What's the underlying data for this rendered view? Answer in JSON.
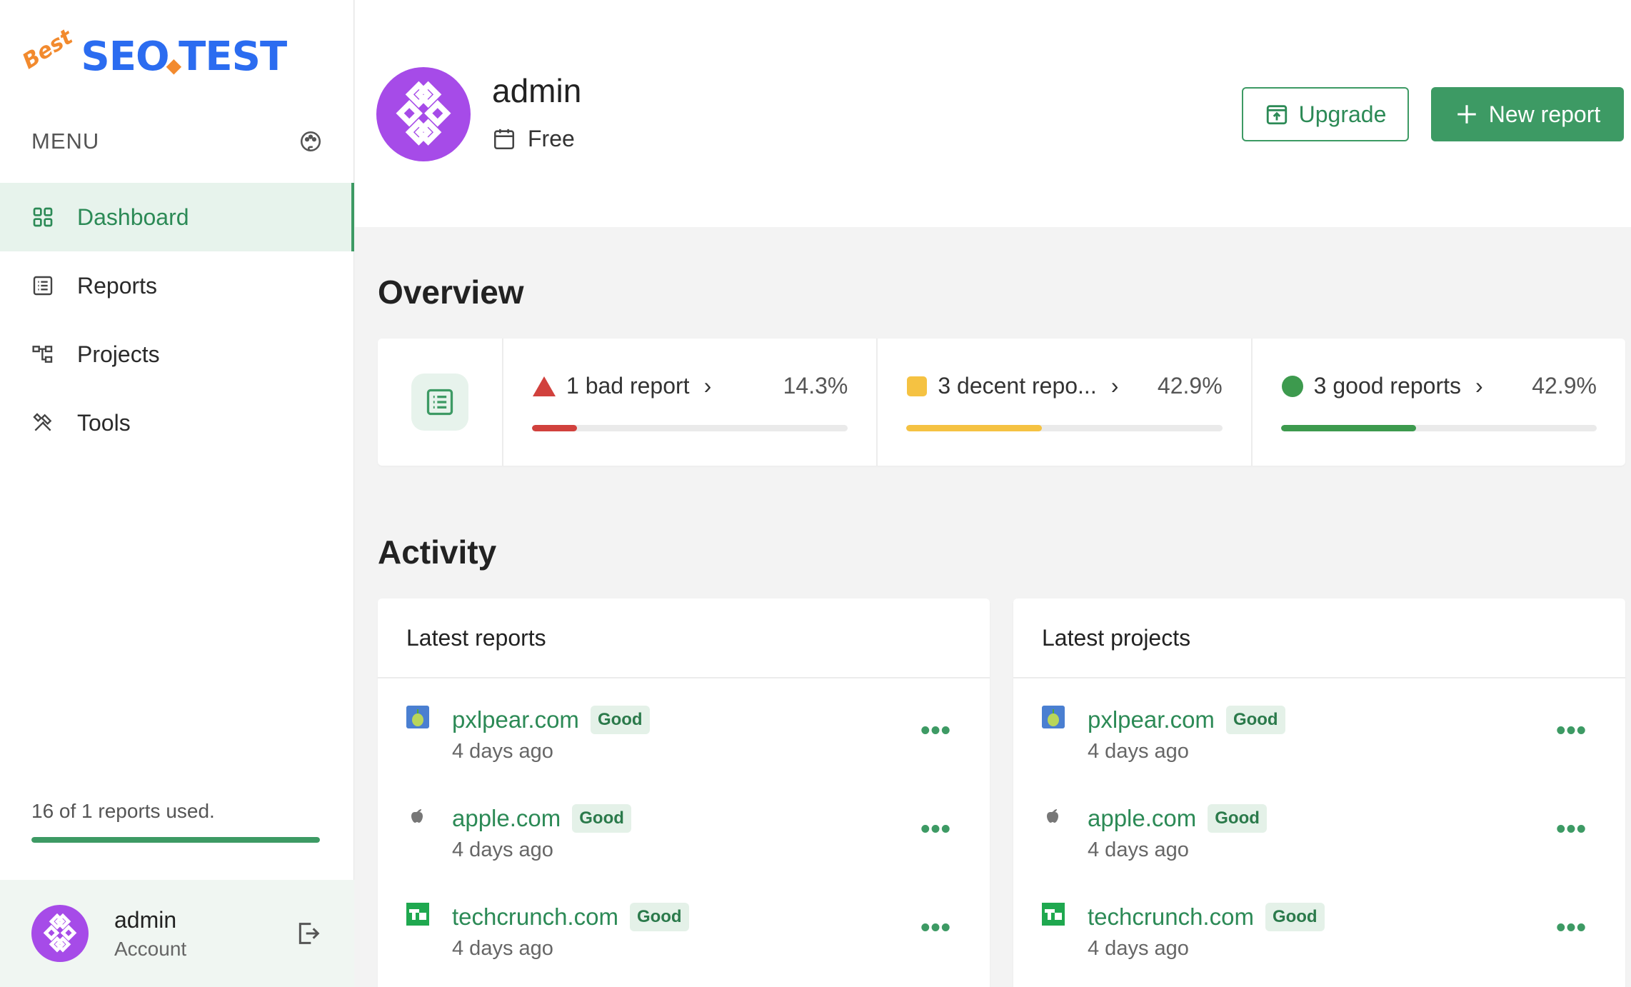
{
  "logo": {
    "prefix": "Best",
    "name_left": "SEO",
    "dot": "◆",
    "name_right": "TEST"
  },
  "sidebar": {
    "menu_label": "MENU",
    "items": [
      {
        "label": "Dashboard",
        "icon": "grid-icon",
        "active": true
      },
      {
        "label": "Reports",
        "icon": "list-icon",
        "active": false
      },
      {
        "label": "Projects",
        "icon": "hierarchy-icon",
        "active": false
      },
      {
        "label": "Tools",
        "icon": "tools-icon",
        "active": false
      }
    ],
    "usage": {
      "text": "16 of 1 reports used.",
      "fill_fraction": 1.0
    },
    "account": {
      "name": "admin",
      "role": "Account"
    }
  },
  "header": {
    "user_name": "admin",
    "plan": "Free",
    "upgrade_label": "Upgrade",
    "new_report_label": "New report"
  },
  "overview": {
    "title": "Overview",
    "items": [
      {
        "label": "1 bad report",
        "percent": "14.3%",
        "fraction": 0.143,
        "color": "#d1413d",
        "shape": "triangle"
      },
      {
        "label": "3 decent repo...",
        "percent": "42.9%",
        "fraction": 0.429,
        "color": "#f5c242",
        "shape": "square"
      },
      {
        "label": "3 good reports",
        "percent": "42.9%",
        "fraction": 0.429,
        "color": "#3d9a4e",
        "shape": "circle"
      }
    ]
  },
  "activity": {
    "title": "Activity",
    "latest_reports": {
      "title": "Latest reports",
      "rows": [
        {
          "site": "pxlpear.com",
          "badge": "Good",
          "time": "4 days ago",
          "favicon": "pear-icon"
        },
        {
          "site": "apple.com",
          "badge": "Good",
          "time": "4 days ago",
          "favicon": "apple-icon"
        },
        {
          "site": "techcrunch.com",
          "badge": "Good",
          "time": "4 days ago",
          "favicon": "techcrunch-icon"
        }
      ]
    },
    "latest_projects": {
      "title": "Latest projects",
      "rows": [
        {
          "site": "pxlpear.com",
          "badge": "Good",
          "time": "4 days ago",
          "favicon": "pear-icon"
        },
        {
          "site": "apple.com",
          "badge": "Good",
          "time": "4 days ago",
          "favicon": "apple-icon"
        },
        {
          "site": "techcrunch.com",
          "badge": "Good",
          "time": "4 days ago",
          "favicon": "techcrunch-icon"
        }
      ]
    }
  },
  "colors": {
    "accent": "#3d9a64",
    "accent_text": "#2c8a56",
    "accent_light": "#e7f3ec",
    "avatar": "#a64be8"
  }
}
